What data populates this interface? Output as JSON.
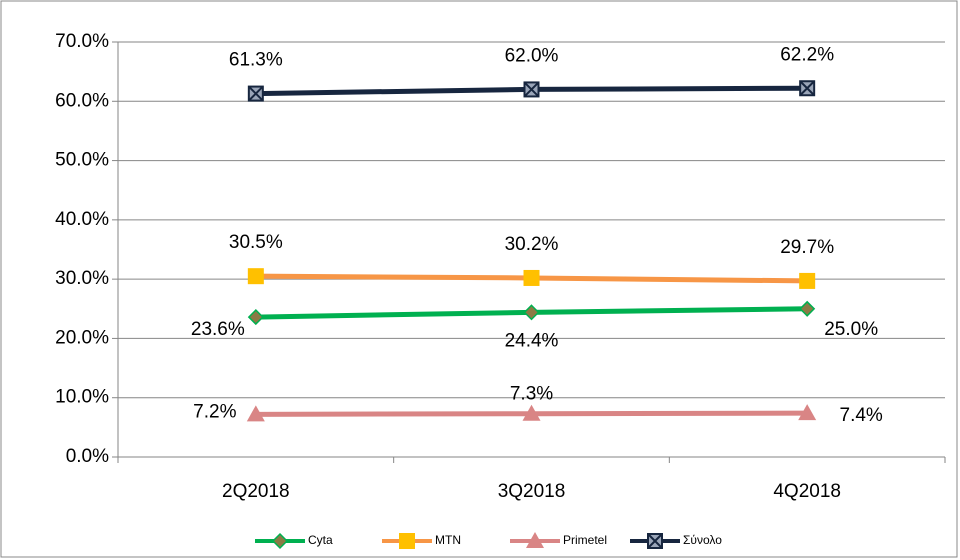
{
  "chart_data": {
    "type": "line",
    "categories": [
      "2Q2018",
      "3Q2018",
      "4Q2018"
    ],
    "series": [
      {
        "name": "Cyta",
        "color": "#00b050",
        "marker_color": "#8b7a45",
        "values": [
          23.6,
          24.4,
          25.0
        ],
        "value_labels": [
          "23.6%",
          "24.4%",
          "25.0%"
        ]
      },
      {
        "name": "MTN",
        "color": "#f79646",
        "marker_color": "#ffc000",
        "values": [
          30.5,
          30.2,
          29.7
        ],
        "value_labels": [
          "30.5%",
          "30.2%",
          "29.7%"
        ]
      },
      {
        "name": "Primetel",
        "color": "#d98585",
        "marker_color": "#d98585",
        "values": [
          7.2,
          7.3,
          7.4
        ],
        "value_labels": [
          "7.2%",
          "7.3%",
          "7.4%"
        ]
      },
      {
        "name": "Σύνολο",
        "color": "#17263f",
        "marker_color": "#9aa5b8",
        "values": [
          61.3,
          62.0,
          62.2
        ],
        "value_labels": [
          "61.3%",
          "62.0%",
          "62.2%"
        ]
      }
    ],
    "ylim": [
      0,
      70
    ],
    "yticks": [
      {
        "value": 0,
        "label": "0.0%"
      },
      {
        "value": 10,
        "label": "10.0%"
      },
      {
        "value": 20,
        "label": "20.0%"
      },
      {
        "value": 30,
        "label": "30.0%"
      },
      {
        "value": 40,
        "label": "40.0%"
      },
      {
        "value": 50,
        "label": "50.0%"
      },
      {
        "value": 60,
        "label": "60.0%"
      },
      {
        "value": 70,
        "label": "70.0%"
      }
    ],
    "grid": true,
    "legend": "bottom"
  }
}
